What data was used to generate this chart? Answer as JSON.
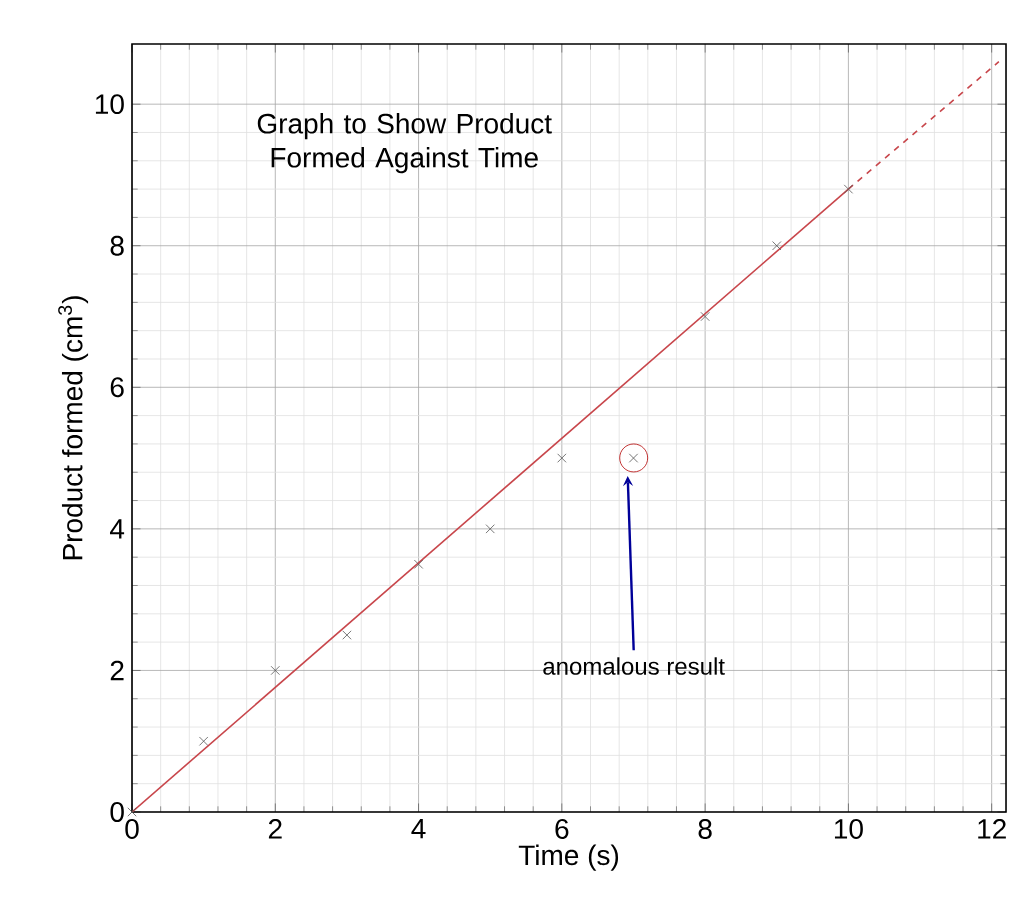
{
  "chart_data": {
    "type": "scatter",
    "title": "Graph to Show Product Formed Against Time",
    "xlabel": "Time (s)",
    "ylabel": "Product formed (cm$^{3}$)",
    "marker": "cross",
    "grid": true,
    "xlim": [
      0,
      12.2
    ],
    "ylim": [
      0,
      10.85
    ],
    "xticks": [
      0,
      2,
      4,
      6,
      8,
      10,
      12
    ],
    "yticks": [
      0,
      2,
      4,
      6,
      8,
      10
    ],
    "series": [
      {
        "color": "#555555",
        "x": [
          0,
          1,
          2,
          3,
          4,
          5,
          6,
          7,
          8,
          9,
          10
        ],
        "values": [
          0,
          1,
          2,
          2.5,
          3.5,
          4,
          5,
          5,
          7,
          8,
          8.8
        ]
      },
      {
        "type": "line",
        "marker": "none",
        "color": "#c8464b",
        "line_style": "solid",
        "x": [
          0,
          10
        ],
        "values": [
          0,
          8.8
        ]
      },
      {
        "type": "line",
        "marker": "none",
        "color": "#c8464b",
        "line_style": "dashed",
        "x": [
          10,
          12.1
        ],
        "values": [
          8.8,
          10.6
        ]
      }
    ],
    "annotations": [
      "anomalous result"
    ]
  }
}
